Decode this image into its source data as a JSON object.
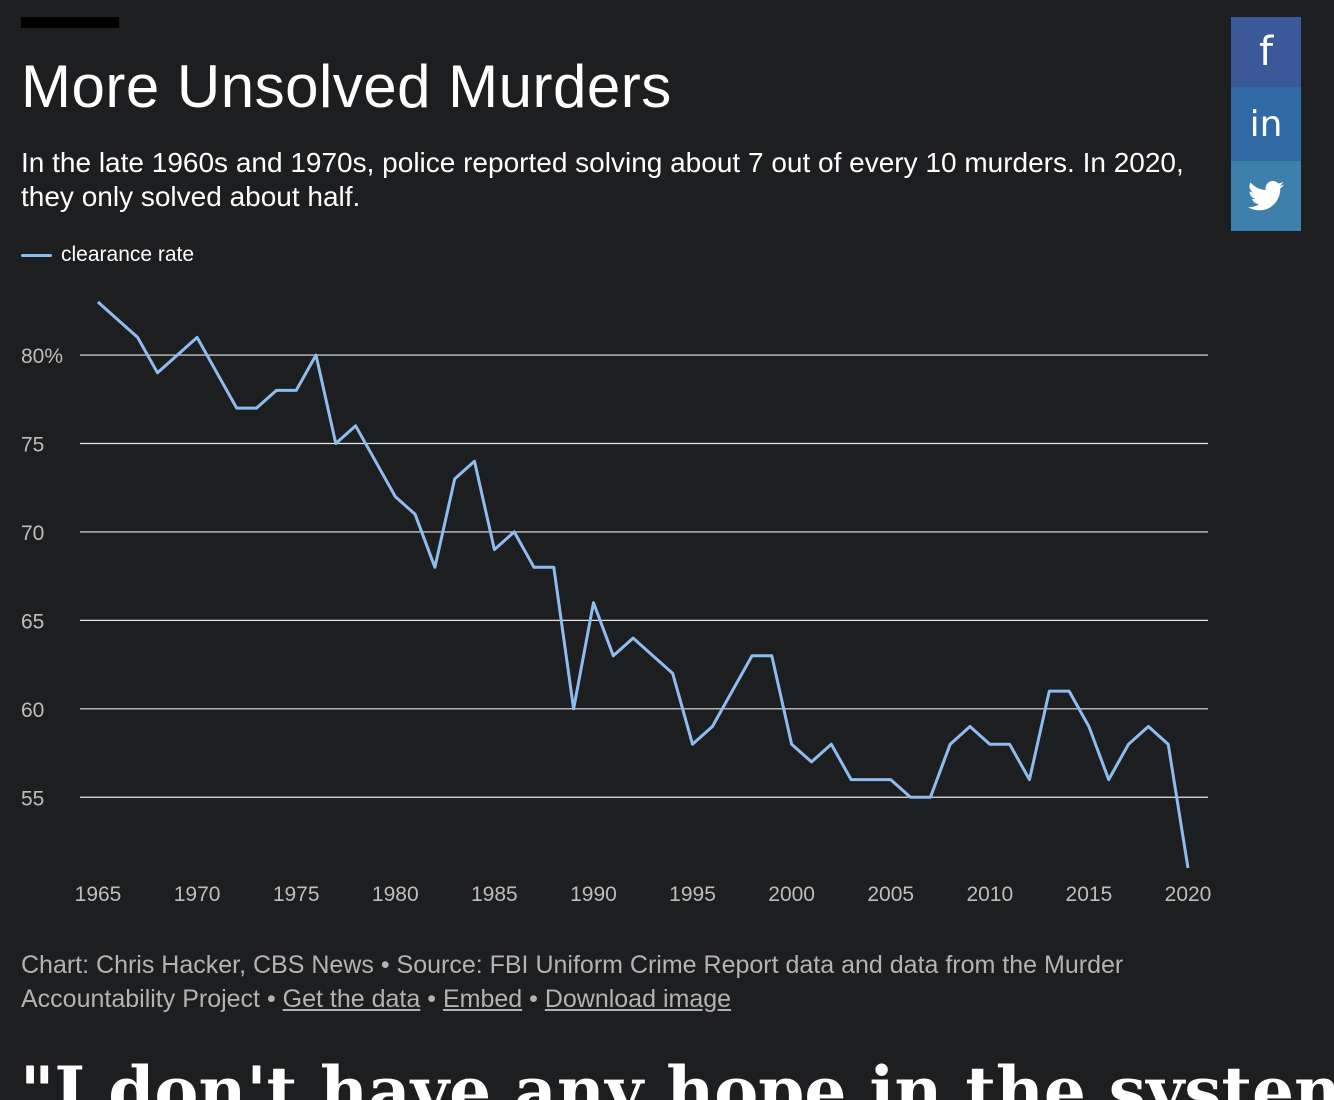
{
  "header": {
    "title": "More Unsolved Murders",
    "subtitle": "In the late 1960s and 1970s, police reported solving about 7 out of every 10 murders. In 2020, they only solved about half."
  },
  "share": {
    "facebook_icon": "facebook-icon",
    "linkedin_icon": "linkedin-icon",
    "twitter_icon": "twitter-icon",
    "facebook_glyph": "f",
    "linkedin_glyph": "in",
    "colors": {
      "facebook": "#3b5998",
      "linkedin": "#2f6aa5",
      "twitter": "#3f7fab"
    }
  },
  "chart_data": {
    "type": "line",
    "title": "More Unsolved Murders",
    "xlabel": "",
    "ylabel": "",
    "legend": "top-left",
    "grid": true,
    "xlim": [
      1965,
      2020
    ],
    "ylim": [
      51,
      83
    ],
    "y_ticks": [
      55,
      60,
      65,
      70,
      75,
      80
    ],
    "y_tick_labels": [
      "55",
      "60",
      "65",
      "70",
      "75",
      "80%"
    ],
    "x_ticks": [
      1965,
      1970,
      1975,
      1980,
      1985,
      1990,
      1995,
      2000,
      2005,
      2010,
      2015,
      2020
    ],
    "x_tick_labels": [
      "1965",
      "1970",
      "1975",
      "1980",
      "1985",
      "1990",
      "1995",
      "2000",
      "2005",
      "2010",
      "2015",
      "2020"
    ],
    "series": [
      {
        "name": "clearance rate",
        "color": "#8fbcef",
        "x": [
          1965,
          1966,
          1967,
          1968,
          1969,
          1970,
          1971,
          1972,
          1973,
          1974,
          1975,
          1976,
          1977,
          1978,
          1979,
          1980,
          1981,
          1982,
          1983,
          1984,
          1985,
          1986,
          1987,
          1988,
          1989,
          1990,
          1991,
          1992,
          1993,
          1994,
          1995,
          1996,
          1997,
          1998,
          1999,
          2000,
          2001,
          2002,
          2003,
          2004,
          2005,
          2006,
          2007,
          2008,
          2009,
          2010,
          2011,
          2012,
          2013,
          2014,
          2015,
          2016,
          2017,
          2018,
          2019,
          2020
        ],
        "values": [
          83,
          82,
          81,
          79,
          80,
          81,
          79,
          77,
          77,
          78,
          78,
          80,
          75,
          76,
          74,
          72,
          71,
          68,
          73,
          74,
          69,
          70,
          68,
          68,
          60,
          66,
          63,
          64,
          63,
          62,
          58,
          59,
          61,
          63,
          63,
          58,
          57,
          58,
          56,
          56,
          56,
          55,
          55,
          58,
          59,
          58,
          58,
          56,
          61,
          61,
          59,
          56,
          58,
          59,
          58,
          51
        ]
      }
    ]
  },
  "footer": {
    "credit": "Chart: Chris Hacker, CBS News • Source: FBI Uniform Crime Report data and data from the Murder Accountability Project",
    "sep": " • ",
    "get_data": "Get the data",
    "embed": "Embed",
    "download": "Download image"
  },
  "next_headline": "\"I don't have any hope in the system\""
}
